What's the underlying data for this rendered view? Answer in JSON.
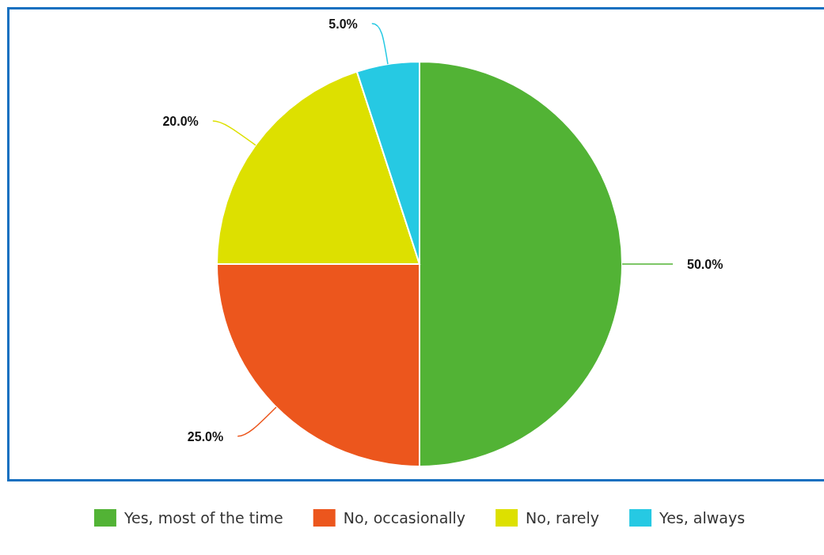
{
  "chart_data": {
    "type": "pie",
    "categories": [
      "Yes, most of the time",
      "No, occasionally",
      "No, rarely",
      "Yes, always"
    ],
    "values": [
      50,
      25,
      20,
      5
    ],
    "colors": [
      "#52b335",
      "#ec561d",
      "#dde000",
      "#26c9e3"
    ],
    "value_labels": [
      "50.0%",
      "25.0%",
      "20.0%",
      "5.0%"
    ],
    "legend": "bottom"
  }
}
